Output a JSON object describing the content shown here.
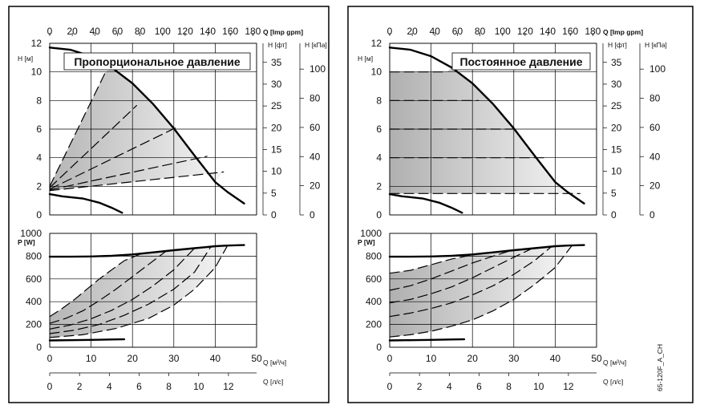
{
  "chart_data": [
    {
      "type": "line",
      "title": "Пропорциональное давление",
      "panel": "left",
      "upper": {
        "ylabel": "H [м]",
        "ylim": [
          0,
          12
        ],
        "yticks": [
          "0",
          "2",
          "4",
          "6",
          "8",
          "10",
          "12"
        ],
        "xlim_q_m3h": [
          0,
          50
        ],
        "top_axis": {
          "label": "Q [Imp gpm]",
          "ticks": [
            "0",
            "20",
            "40",
            "60",
            "80",
            "100",
            "120",
            "140",
            "160",
            "180"
          ]
        },
        "right_axis_ft": {
          "label": "H [фт]",
          "ticks": [
            "0",
            "5",
            "10",
            "15",
            "20",
            "25",
            "30",
            "35"
          ]
        },
        "right_axis_kpa": {
          "label": "H [кПа]",
          "ticks": [
            "0",
            "20",
            "40",
            "60",
            "80",
            "100"
          ]
        },
        "series": [
          {
            "style": "solid",
            "x": [
              0,
              5,
              10,
              15,
              20,
              25,
              30,
              35,
              40,
              43,
              47
            ],
            "y": [
              11.7,
              11.55,
              11.1,
              10.3,
              9.2,
              7.75,
              6.05,
              4.15,
              2.3,
              1.6,
              0.8
            ]
          },
          {
            "style": "solid",
            "x": [
              0,
              3,
              8,
              12,
              15,
              17.5
            ],
            "y": [
              1.45,
              1.3,
              1.15,
              0.85,
              0.5,
              0.15
            ]
          },
          {
            "style": "dashed",
            "x": [
              0,
              13.5
            ],
            "y": [
              2.0,
              10.0
            ]
          },
          {
            "style": "dashed",
            "x": [
              0,
              21
            ],
            "y": [
              1.9,
              7.65
            ]
          },
          {
            "style": "dashed",
            "x": [
              0,
              30.5
            ],
            "y": [
              1.8,
              6.1
            ]
          },
          {
            "style": "dashed",
            "x": [
              0,
              38
            ],
            "y": [
              1.75,
              4.1
            ]
          },
          {
            "style": "dashed",
            "x": [
              0,
              42
            ],
            "y": [
              1.7,
              3.0
            ]
          }
        ]
      },
      "lower": {
        "ylabel": "P [W]",
        "ylim": [
          0,
          1000
        ],
        "yticks": [
          "0",
          "200",
          "400",
          "600",
          "800",
          "1000"
        ],
        "x_q_m3h": {
          "label": "Q [м³/ч]",
          "ticks": [
            "0",
            "10",
            "20",
            "30",
            "40",
            "50"
          ]
        },
        "x_q_ls": {
          "label": "Q [л/с]",
          "ticks": [
            "0",
            "2",
            "4",
            "6",
            "8",
            "10",
            "12"
          ]
        },
        "series": [
          {
            "style": "solid",
            "x": [
              0,
              5,
              10,
              15,
              20,
              25,
              30,
              35,
              40,
              43,
              47
            ],
            "y": [
              795,
              795,
              797,
              803,
              815,
              833,
              852,
              870,
              887,
              893,
              897
            ]
          },
          {
            "style": "solid",
            "x": [
              0,
              5,
              10,
              15,
              18
            ],
            "y": [
              60,
              62,
              65,
              68,
              70
            ]
          },
          {
            "style": "dashed",
            "x": [
              0,
              3,
              6,
              9,
              12,
              15,
              18,
              22
            ],
            "y": [
              270,
              340,
              420,
              510,
              600,
              680,
              760,
              820
            ]
          },
          {
            "style": "dashed",
            "x": [
              0,
              4,
              8,
              12,
              16,
              20,
              24,
              28
            ],
            "y": [
              210,
              255,
              320,
              410,
              510,
              620,
              730,
              840
            ]
          },
          {
            "style": "dashed",
            "x": [
              0,
              5,
              10,
              15,
              20,
              25,
              30,
              35
            ],
            "y": [
              160,
              195,
              250,
              325,
              420,
              540,
              680,
              870
            ]
          },
          {
            "style": "dashed",
            "x": [
              0,
              6,
              12,
              18,
              24,
              30,
              35,
              39
            ],
            "y": [
              120,
              150,
              200,
              280,
              380,
              510,
              660,
              885
            ]
          },
          {
            "style": "dashed",
            "x": [
              0,
              8,
              16,
              24,
              30,
              35,
              40,
              43
            ],
            "y": [
              85,
              110,
              165,
              255,
              370,
              510,
              700,
              895
            ]
          }
        ]
      }
    },
    {
      "type": "line",
      "title": "Постоянное давление",
      "panel": "right",
      "label_side": "65-120F_A_CH",
      "upper": {
        "ylabel": "H [м]",
        "ylim": [
          0,
          12
        ],
        "yticks": [
          "0",
          "2",
          "4",
          "6",
          "8",
          "10",
          "12"
        ],
        "xlim_q_m3h": [
          0,
          50
        ],
        "top_axis": {
          "label": "Q [Imp gpm]",
          "ticks": [
            "0",
            "20",
            "40",
            "60",
            "80",
            "100",
            "120",
            "140",
            "160",
            "180"
          ]
        },
        "right_axis_ft": {
          "label": "H [фт]",
          "ticks": [
            "0",
            "5",
            "10",
            "15",
            "20",
            "25",
            "30",
            "35"
          ]
        },
        "right_axis_kpa": {
          "label": "H [кПа]",
          "ticks": [
            "0",
            "20",
            "40",
            "60",
            "80",
            "100"
          ]
        },
        "series": [
          {
            "style": "solid",
            "x": [
              0,
              5,
              10,
              15,
              20,
              25,
              30,
              35,
              40,
              43,
              47
            ],
            "y": [
              11.7,
              11.55,
              11.1,
              10.3,
              9.2,
              7.75,
              6.05,
              4.15,
              2.3,
              1.6,
              0.8
            ]
          },
          {
            "style": "solid",
            "x": [
              0,
              3,
              8,
              12,
              15,
              17.5
            ],
            "y": [
              1.45,
              1.3,
              1.15,
              0.85,
              0.5,
              0.15
            ]
          },
          {
            "style": "dashed",
            "x": [
              0,
              13.8
            ],
            "y": [
              10.0,
              10.0
            ]
          },
          {
            "style": "dashed",
            "x": [
              0,
              21.5
            ],
            "y": [
              8.0,
              8.0
            ]
          },
          {
            "style": "dashed",
            "x": [
              0,
              30.5
            ],
            "y": [
              6.0,
              6.0
            ]
          },
          {
            "style": "dashed",
            "x": [
              0,
              37.5
            ],
            "y": [
              4.0,
              4.0
            ]
          },
          {
            "style": "dashed",
            "x": [
              0,
              46
            ],
            "y": [
              1.5,
              1.5
            ]
          }
        ]
      },
      "lower": {
        "ylabel": "P [W]",
        "ylim": [
          0,
          1000
        ],
        "yticks": [
          "0",
          "200",
          "400",
          "600",
          "800",
          "1000"
        ],
        "x_q_m3h": {
          "label": "Q [м³/ч]",
          "ticks": [
            "0",
            "10",
            "20",
            "30",
            "40",
            "50"
          ]
        },
        "x_q_ls": {
          "label": "Q [л/с]",
          "ticks": [
            "0",
            "2",
            "4",
            "6",
            "8",
            "10",
            "12"
          ]
        },
        "series": [
          {
            "style": "solid",
            "x": [
              0,
              5,
              10,
              15,
              20,
              25,
              30,
              35,
              40,
              43,
              47
            ],
            "y": [
              795,
              795,
              797,
              803,
              815,
              833,
              852,
              870,
              887,
              893,
              897
            ]
          },
          {
            "style": "solid",
            "x": [
              0,
              5,
              10,
              15,
              18
            ],
            "y": [
              60,
              62,
              65,
              68,
              70
            ]
          },
          {
            "style": "dashed",
            "x": [
              0,
              5,
              10,
              15,
              20,
              23
            ],
            "y": [
              650,
              675,
              725,
              775,
              810,
              830
            ]
          },
          {
            "style": "dashed",
            "x": [
              0,
              5,
              10,
              15,
              20,
              25,
              29
            ],
            "y": [
              500,
              540,
              600,
              670,
              740,
              800,
              845
            ]
          },
          {
            "style": "dashed",
            "x": [
              0,
              5,
              10,
              15,
              20,
              25,
              30,
              34
            ],
            "y": [
              390,
              420,
              470,
              530,
              610,
              700,
              790,
              860
            ]
          },
          {
            "style": "dashed",
            "x": [
              0,
              5,
              10,
              15,
              20,
              25,
              30,
              35,
              39
            ],
            "y": [
              270,
              300,
              340,
              390,
              460,
              540,
              640,
              760,
              880
            ]
          },
          {
            "style": "dashed",
            "x": [
              0,
              5,
              10,
              15,
              20,
              25,
              30,
              35,
              40,
              44
            ],
            "y": [
              90,
              110,
              140,
              185,
              240,
              320,
              420,
              550,
              700,
              890
            ]
          }
        ]
      }
    }
  ]
}
